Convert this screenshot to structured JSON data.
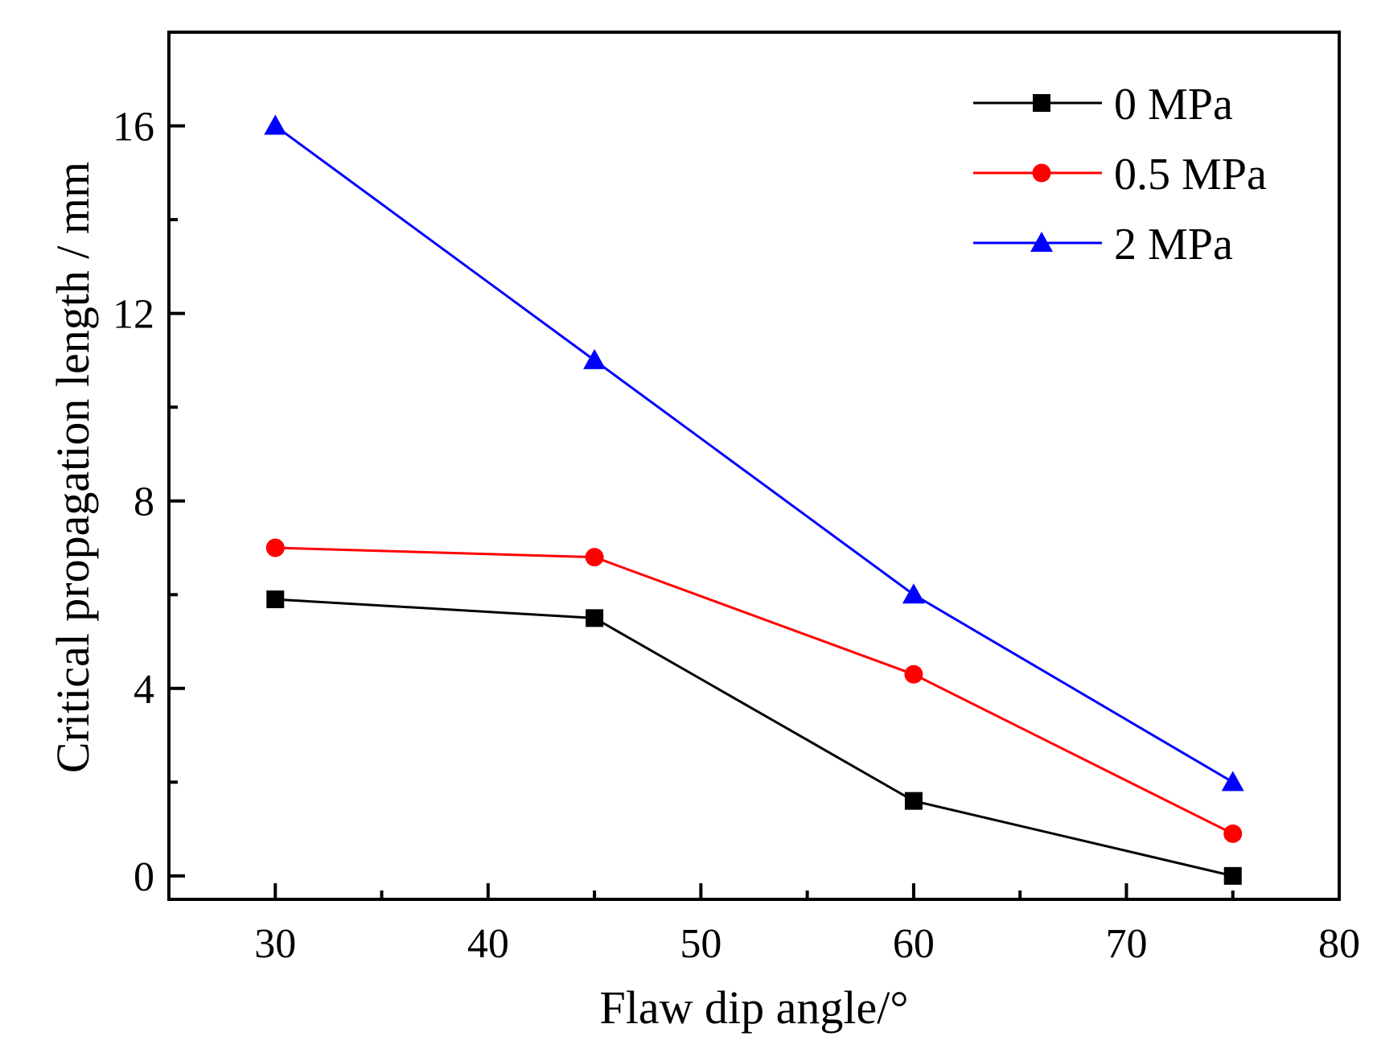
{
  "chart_data": {
    "type": "line",
    "title": "",
    "xlabel": "Flaw dip angle/°",
    "ylabel": "Critical propagation length / mm",
    "xlim": [
      25,
      80
    ],
    "ylim": [
      -0.5,
      18
    ],
    "x_major_ticks": [
      30,
      40,
      50,
      60,
      70,
      80
    ],
    "x_minor_ticks": [
      35,
      45,
      55,
      65,
      75
    ],
    "y_major_ticks": [
      0,
      4,
      8,
      12,
      16
    ],
    "y_minor_ticks": [
      2,
      6,
      10,
      14
    ],
    "x_tick_labels": [
      "30",
      "40",
      "50",
      "60",
      "70",
      "80"
    ],
    "y_tick_labels": [
      "0",
      "4",
      "8",
      "12",
      "16"
    ],
    "grid": false,
    "legend_position": "top-right",
    "x": [
      30,
      45,
      60,
      75
    ],
    "series": [
      {
        "name": "0 MPa",
        "color": "#000000",
        "marker": "square",
        "values": [
          5.9,
          5.5,
          1.6,
          0.0
        ]
      },
      {
        "name": "0.5 MPa",
        "color": "#ff0000",
        "marker": "circle",
        "values": [
          7.0,
          6.8,
          4.3,
          0.9
        ]
      },
      {
        "name": "2 MPa",
        "color": "#0000ff",
        "marker": "triangle",
        "values": [
          16.0,
          11.0,
          6.0,
          2.0
        ]
      }
    ]
  }
}
